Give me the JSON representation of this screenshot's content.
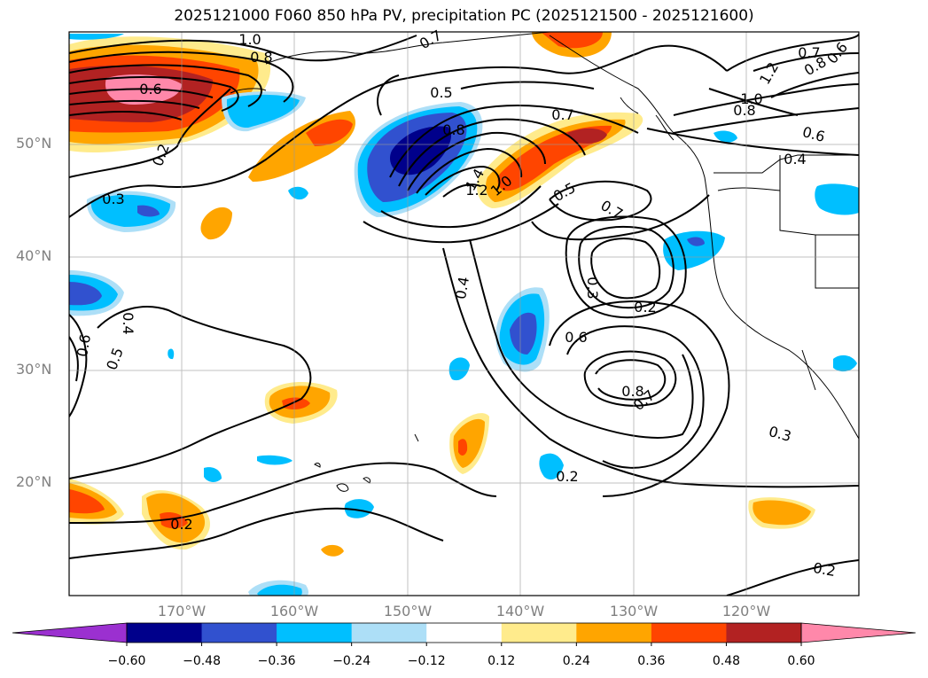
{
  "title": "2025121000 F060 850 hPa PV, precipitation PC (2025121500 - 2025121600)",
  "lat_labels": [
    "50°N",
    "40°N",
    "30°N",
    "20°N"
  ],
  "lon_labels": [
    "170°W",
    "160°W",
    "150°W",
    "140°W",
    "130°W",
    "120°W"
  ],
  "colorbar": {
    "ticks": [
      "−0.60",
      "−0.48",
      "−0.36",
      "−0.24",
      "−0.12",
      "0.12",
      "0.24",
      "0.36",
      "0.48",
      "0.60"
    ],
    "colors": [
      "#9b30d0",
      "#00008b",
      "#3151cf",
      "#00bfff",
      "#addff7",
      "#ffffff",
      "#ffeb8c",
      "#ffa500",
      "#ff4500",
      "#b22222",
      "#ff88aa"
    ]
  },
  "contour_labels": [
    {
      "text": "1.0",
      "kind": "pv"
    },
    {
      "text": "0.8",
      "kind": "pv"
    },
    {
      "text": "0.6",
      "kind": "pv"
    },
    {
      "text": "0.2",
      "kind": "pv"
    },
    {
      "text": "0.3",
      "kind": "pv"
    },
    {
      "text": "0.5",
      "kind": "pv"
    },
    {
      "text": "0.7",
      "kind": "pv"
    },
    {
      "text": "0.8",
      "kind": "pv"
    },
    {
      "text": "1.4",
      "kind": "pv"
    },
    {
      "text": "1.2",
      "kind": "pv"
    },
    {
      "text": "1.0",
      "kind": "pv"
    },
    {
      "text": "0.7",
      "kind": "pv"
    },
    {
      "text": "0.5",
      "kind": "pv"
    },
    {
      "text": "0.7",
      "kind": "pv"
    },
    {
      "text": "0.4",
      "kind": "pv"
    },
    {
      "text": "0.3",
      "kind": "pv"
    },
    {
      "text": "0.2",
      "kind": "pv"
    },
    {
      "text": "0.6",
      "kind": "pv"
    },
    {
      "text": "0.8",
      "kind": "pv"
    },
    {
      "text": "0.7",
      "kind": "pv"
    },
    {
      "text": "0.3",
      "kind": "pv"
    },
    {
      "text": "0.2",
      "kind": "pv"
    },
    {
      "text": "0.2",
      "kind": "pv"
    },
    {
      "text": "0.2",
      "kind": "pv"
    },
    {
      "text": "0.6",
      "kind": "pv"
    },
    {
      "text": "0.5",
      "kind": "pv"
    },
    {
      "text": "0.4",
      "kind": "pv"
    },
    {
      "text": "0.7",
      "kind": "pv"
    },
    {
      "text": "1.0",
      "kind": "pv"
    },
    {
      "text": "0.8",
      "kind": "pv"
    },
    {
      "text": "1.2",
      "kind": "pv"
    },
    {
      "text": "0.8",
      "kind": "pv"
    },
    {
      "text": "0.6",
      "kind": "pv"
    },
    {
      "text": "0.6",
      "kind": "pv"
    },
    {
      "text": "0.4",
      "kind": "pv"
    }
  ]
}
